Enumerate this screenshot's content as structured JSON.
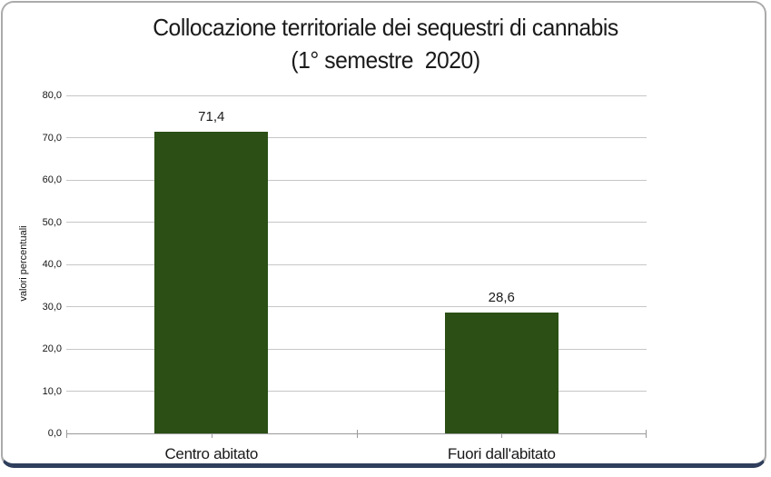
{
  "chart": {
    "title_line1": "Collocazione territoriale dei sequestri di cannabis",
    "title_line2": "(1° semestre  2020)",
    "ylabel": "valori percentuali"
  },
  "chart_data": {
    "type": "bar",
    "title": "Collocazione territoriale dei sequestri di cannabis (1° semestre 2020)",
    "categories": [
      "Centro abitato",
      "Fuori dall'abitato"
    ],
    "values": [
      71.4,
      28.6
    ],
    "data_labels": [
      "71,4",
      "28,6"
    ],
    "xlabel": "",
    "ylabel": "valori percentuali",
    "ylim": [
      0,
      80
    ],
    "ytick_step": 10,
    "ytick_labels": [
      "0,0",
      "10,0",
      "20,0",
      "30,0",
      "40,0",
      "50,0",
      "60,0",
      "70,0",
      "80,0"
    ],
    "grid": true,
    "legend": false
  },
  "colors": {
    "bar": "#2B4F14",
    "gridline": "#c6c6c6",
    "axis": "#9a9a9a",
    "frame_border": "#ababab",
    "bottom_accent": "#2F3E5C",
    "text": "#1a1a1a"
  }
}
